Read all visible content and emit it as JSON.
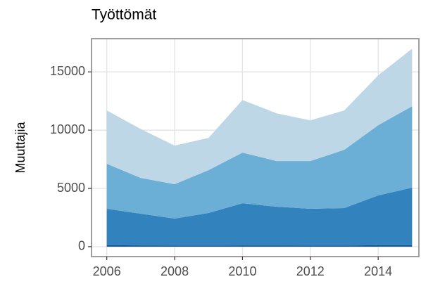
{
  "chart_data": {
    "type": "stacked_area",
    "title": "Työttömät",
    "y_label": "Muuttajia",
    "x": [
      2006,
      2007,
      2008,
      2009,
      2010,
      2011,
      2012,
      2013,
      2014,
      2015
    ],
    "series": [
      {
        "color": "#08519c",
        "values": [
          120,
          110,
          100,
          90,
          110,
          110,
          100,
          100,
          120,
          130
        ]
      },
      {
        "color": "#3182bd",
        "values": [
          3130,
          2720,
          2310,
          2800,
          3620,
          3320,
          3150,
          3210,
          4280,
          4930
        ]
      },
      {
        "color": "#6baed6",
        "values": [
          3860,
          3070,
          2950,
          3680,
          4340,
          3920,
          4100,
          5000,
          6020,
          6990
        ]
      },
      {
        "color": "#bdd7e7",
        "values": [
          4580,
          4200,
          3315,
          2770,
          4520,
          4100,
          3490,
          3380,
          4280,
          4940
        ]
      }
    ],
    "xlim": [
      2005.55,
      2015.2
    ],
    "xticks": [
      2006,
      2008,
      2010,
      2012,
      2014
    ],
    "ylim": [
      -850,
      17850
    ],
    "yticks": [
      0,
      5000,
      10000,
      15000
    ],
    "grid": true
  }
}
